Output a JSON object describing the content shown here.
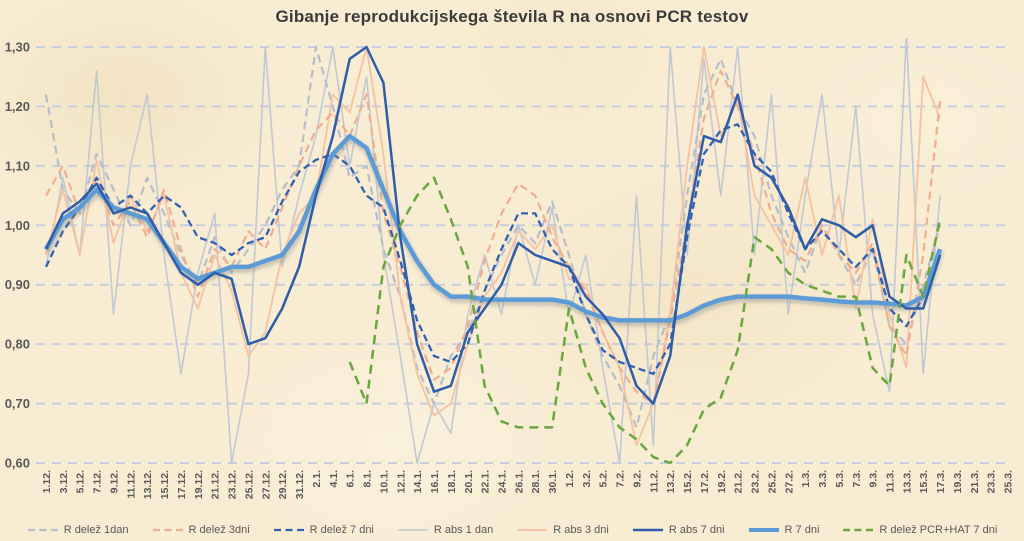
{
  "chart_data": {
    "type": "line",
    "title": "Gibanje reprodukcijskega števila R na osnovi PCR testov",
    "xlabel": "",
    "ylabel": "",
    "ylim": [
      0.6,
      1.3
    ],
    "grid": "horizontal-dashed",
    "legend_position": "bottom",
    "background": "#f8ecd2",
    "gridline_color": "#c6cedd",
    "text_color": "#595959",
    "x_labels": [
      "1.12.",
      "3.12.",
      "5.12.",
      "7.12.",
      "9.12.",
      "11.12.",
      "13.12.",
      "15.12.",
      "17.12.",
      "19.12.",
      "21.12.",
      "23.12.",
      "25.12.",
      "27.12.",
      "29.12.",
      "31.12.",
      "2.1.",
      "4.1.",
      "6.1.",
      "8.1.",
      "10.1.",
      "12.1.",
      "14.1.",
      "16.1.",
      "18.1.",
      "20.1.",
      "22.1.",
      "24.1.",
      "26.1.",
      "28.1.",
      "30.1.",
      "1.2.",
      "3.2.",
      "5.2.",
      "7.2.",
      "9.2.",
      "11.2.",
      "13.2.",
      "15.2.",
      "17.2.",
      "19.2.",
      "21.2.",
      "23.2.",
      "25.2.",
      "27.2.",
      "1.3.",
      "3.3.",
      "5.3.",
      "7.3.",
      "9.3.",
      "11.3.",
      "13.3.",
      "15.3.",
      "17.3.",
      "19.3.",
      "21.3.",
      "23.3.",
      "25.3."
    ],
    "y_ticks": {
      "values": [
        0.6,
        0.7,
        0.8,
        0.9,
        1.0,
        1.1,
        1.2,
        1.3
      ],
      "labels": [
        "0,60",
        "0,70",
        "0,80",
        "0,90",
        "1,00",
        "1,10",
        "1,20",
        "1,30"
      ]
    },
    "series": [
      {
        "name": "R delež 1dan",
        "color": "#b6bdcb",
        "dash": "8 5",
        "width": 2.2,
        "z": 2,
        "values": [
          1.22,
          1.06,
          1.02,
          1.12,
          1.06,
          1.0,
          1.08,
          1.02,
          0.95,
          0.9,
          0.98,
          0.92,
          0.96,
          1.0,
          1.06,
          1.1,
          1.3,
          1.2,
          1.08,
          1.1,
          0.96,
          0.88,
          0.76,
          0.7,
          0.78,
          0.82,
          0.89,
          0.95,
          1.0,
          0.97,
          1.04,
          0.95,
          0.85,
          0.78,
          0.73,
          0.66,
          0.78,
          0.85,
          1.05,
          1.22,
          1.28,
          1.2,
          1.15,
          1.05,
          0.98,
          0.92,
          1.0,
          0.95,
          0.9,
          0.96,
          0.83,
          0.8,
          0.9,
          1.0,
          null,
          null,
          null,
          null
        ]
      },
      {
        "name": "R delež 3dni",
        "color": "#efae90",
        "dash": "8 5",
        "width": 2.2,
        "z": 4,
        "values": [
          1.05,
          1.1,
          1.02,
          1.08,
          1.0,
          1.04,
          0.98,
          1.06,
          0.96,
          0.88,
          0.96,
          0.93,
          0.99,
          0.96,
          1.03,
          1.1,
          1.16,
          1.19,
          1.15,
          1.22,
          1.02,
          0.93,
          0.82,
          0.74,
          0.76,
          0.83,
          0.94,
          1.02,
          1.07,
          1.05,
          0.98,
          0.93,
          0.89,
          0.82,
          0.76,
          0.72,
          0.7,
          0.84,
          1.0,
          1.18,
          1.26,
          1.2,
          1.12,
          1.02,
          0.96,
          0.94,
          1.0,
          0.95,
          0.92,
          0.97,
          0.83,
          0.78,
          0.95,
          1.21,
          null,
          null,
          null,
          null
        ]
      },
      {
        "name": "R delež 7 dni",
        "color": "#3161b2",
        "dash": "7 4",
        "width": 2.3,
        "z": 5,
        "values": [
          0.93,
          0.99,
          1.03,
          1.08,
          1.03,
          1.05,
          1.02,
          1.05,
          1.03,
          0.98,
          0.97,
          0.95,
          0.97,
          0.98,
          1.04,
          1.09,
          1.11,
          1.12,
          1.1,
          1.05,
          1.03,
          0.94,
          0.84,
          0.78,
          0.77,
          0.8,
          0.89,
          0.96,
          1.02,
          1.02,
          0.96,
          0.93,
          0.85,
          0.79,
          0.77,
          0.76,
          0.75,
          0.8,
          0.98,
          1.12,
          1.16,
          1.17,
          1.12,
          1.09,
          1.02,
          0.96,
          0.99,
          0.96,
          0.93,
          0.96,
          0.86,
          0.83,
          0.88,
          0.96,
          null,
          null,
          null,
          null
        ]
      },
      {
        "name": "R abs 1 dan",
        "color": "#c2c8d3",
        "dash": null,
        "width": 1.6,
        "z": 1,
        "values": [
          0.93,
          1.08,
          0.95,
          1.26,
          0.85,
          1.1,
          1.22,
          0.95,
          0.75,
          0.92,
          1.02,
          0.6,
          0.75,
          1.3,
          0.93,
          1.05,
          1.15,
          1.3,
          1.1,
          1.25,
          0.95,
          0.78,
          0.6,
          0.7,
          0.65,
          0.85,
          0.95,
          0.85,
          1.0,
          0.9,
          1.03,
          0.85,
          0.95,
          0.76,
          0.6,
          1.05,
          0.63,
          1.3,
          0.95,
          1.28,
          1.05,
          1.3,
          0.95,
          1.22,
          0.85,
          1.05,
          1.22,
          0.95,
          1.2,
          0.85,
          0.72,
          1.32,
          0.75,
          1.05,
          null,
          null,
          null,
          null
        ]
      },
      {
        "name": "R abs 3 dni",
        "color": "#f5c2a2",
        "dash": null,
        "width": 1.8,
        "z": 3,
        "values": [
          0.95,
          1.06,
          0.95,
          1.11,
          0.97,
          1.05,
          0.99,
          1.05,
          0.92,
          0.86,
          0.95,
          0.89,
          0.78,
          0.82,
          0.95,
          1.02,
          1.05,
          1.22,
          1.19,
          1.3,
          1.12,
          0.88,
          0.75,
          0.68,
          0.7,
          0.8,
          0.88,
          0.92,
          0.99,
          0.96,
          1.0,
          0.91,
          0.9,
          0.82,
          0.76,
          0.63,
          0.7,
          0.85,
          1.1,
          1.3,
          1.15,
          1.21,
          1.05,
          1.0,
          0.95,
          1.08,
          0.95,
          1.05,
          0.86,
          1.01,
          0.85,
          0.76,
          1.25,
          1.18,
          null,
          null,
          null,
          null
        ]
      },
      {
        "name": "R abs 7 dni",
        "color": "#2e5da9",
        "dash": null,
        "width": 2.5,
        "z": 7,
        "values": [
          0.96,
          1.02,
          1.04,
          1.07,
          1.02,
          1.03,
          1.02,
          0.97,
          0.92,
          0.9,
          0.92,
          0.91,
          0.8,
          0.81,
          0.86,
          0.93,
          1.05,
          1.15,
          1.28,
          1.3,
          1.24,
          0.98,
          0.8,
          0.72,
          0.73,
          0.82,
          0.86,
          0.9,
          0.97,
          0.95,
          0.94,
          0.93,
          0.88,
          0.85,
          0.81,
          0.73,
          0.7,
          0.78,
          1.0,
          1.15,
          1.14,
          1.22,
          1.1,
          1.08,
          1.03,
          0.96,
          1.01,
          1.0,
          0.98,
          1.0,
          0.88,
          0.86,
          0.86,
          0.95,
          null,
          null,
          null,
          null
        ]
      },
      {
        "name": "R 7 dni",
        "color": "#5b9bd5",
        "dash": null,
        "width": 4.5,
        "shadow": true,
        "z": 6,
        "values": [
          0.96,
          1.01,
          1.03,
          1.06,
          1.03,
          1.02,
          1.01,
          0.97,
          0.93,
          0.91,
          0.92,
          0.93,
          0.93,
          0.94,
          0.95,
          0.99,
          1.06,
          1.12,
          1.15,
          1.13,
          1.06,
          0.99,
          0.94,
          0.9,
          0.88,
          0.88,
          0.875,
          0.875,
          0.875,
          0.875,
          0.875,
          0.87,
          0.855,
          0.845,
          0.84,
          0.84,
          0.84,
          0.84,
          0.85,
          0.865,
          0.875,
          0.88,
          0.88,
          0.88,
          0.88,
          0.877,
          0.875,
          0.872,
          0.87,
          0.87,
          0.868,
          0.865,
          0.88,
          0.96,
          null,
          null,
          null,
          null
        ]
      },
      {
        "name": "R delež PCR+HAT 7 dni",
        "color": "#6aa63e",
        "dash": "9 6",
        "width": 2.5,
        "z": 8,
        "values": [
          null,
          null,
          null,
          null,
          null,
          null,
          null,
          null,
          null,
          null,
          null,
          null,
          null,
          null,
          null,
          null,
          null,
          null,
          0.77,
          0.7,
          0.93,
          1.0,
          1.05,
          1.08,
          1.01,
          0.93,
          0.73,
          0.67,
          0.66,
          0.66,
          0.66,
          0.86,
          0.76,
          0.7,
          0.66,
          0.64,
          0.61,
          0.6,
          0.63,
          0.69,
          0.71,
          0.79,
          0.98,
          0.96,
          0.92,
          0.9,
          0.89,
          0.88,
          0.88,
          0.76,
          0.73,
          0.95,
          0.88,
          1.01,
          null,
          null,
          null,
          null
        ]
      }
    ]
  }
}
